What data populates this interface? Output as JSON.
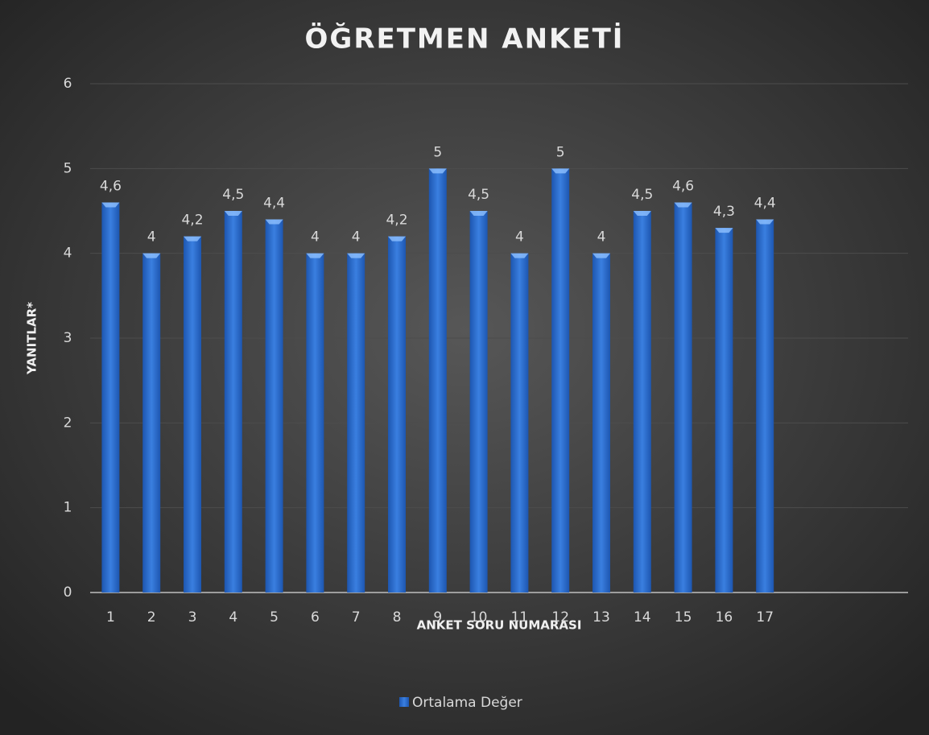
{
  "chart_data": {
    "type": "bar",
    "title": "ÖĞRETMEN ANKETİ",
    "x_label": "ANKET SORU NUMARASI",
    "y_label": "YANITLAR*",
    "categories": [
      "1",
      "2",
      "3",
      "4",
      "5",
      "6",
      "7",
      "8",
      "9",
      "10",
      "11",
      "12",
      "13",
      "14",
      "15",
      "16",
      "17",
      null,
      null,
      null
    ],
    "series": [
      {
        "name": "Ortalama Değer",
        "color": "#2e6fd1",
        "values": [
          4.6,
          4,
          4.2,
          4.5,
          4.4,
          4,
          4,
          4.2,
          5,
          4.5,
          4,
          5,
          4,
          4.5,
          4.6,
          4.3,
          4.4,
          null,
          null,
          null
        ],
        "value_labels": [
          "4,6",
          "4",
          "4,2",
          "4,5",
          "4,4",
          "4",
          "4",
          "4,2",
          "5",
          "4,5",
          "4",
          "5",
          "4",
          "4,5",
          "4,6",
          "4,3",
          "4,4",
          null,
          null,
          null
        ]
      }
    ],
    "ylim": [
      0,
      6
    ],
    "yticks": [
      0,
      1,
      2,
      3,
      4,
      5,
      6
    ],
    "grid": true,
    "legend": "bottom"
  }
}
